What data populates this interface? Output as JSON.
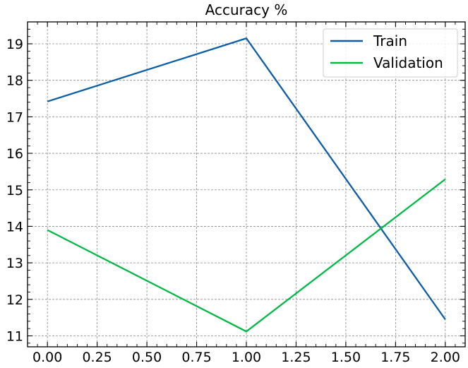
{
  "chart_data": {
    "type": "line",
    "title": "Accuracy %",
    "xlabel": "",
    "ylabel": "",
    "x": [
      0,
      1,
      2
    ],
    "xlim": [
      -0.1,
      2.1
    ],
    "ylim": [
      10.7,
      19.6
    ],
    "xticks": [
      "0.00",
      "0.25",
      "0.50",
      "0.75",
      "1.00",
      "1.25",
      "1.50",
      "1.75",
      "2.00"
    ],
    "yticks": [
      "11",
      "12",
      "13",
      "14",
      "15",
      "16",
      "17",
      "18",
      "19"
    ],
    "grid": true,
    "legend_position": "top-right",
    "series": [
      {
        "name": "Train",
        "color": "#0C5DA5",
        "values": [
          17.42,
          19.15,
          11.45
        ]
      },
      {
        "name": "Validation",
        "color": "#00B945",
        "values": [
          13.9,
          11.12,
          15.29
        ]
      }
    ]
  }
}
